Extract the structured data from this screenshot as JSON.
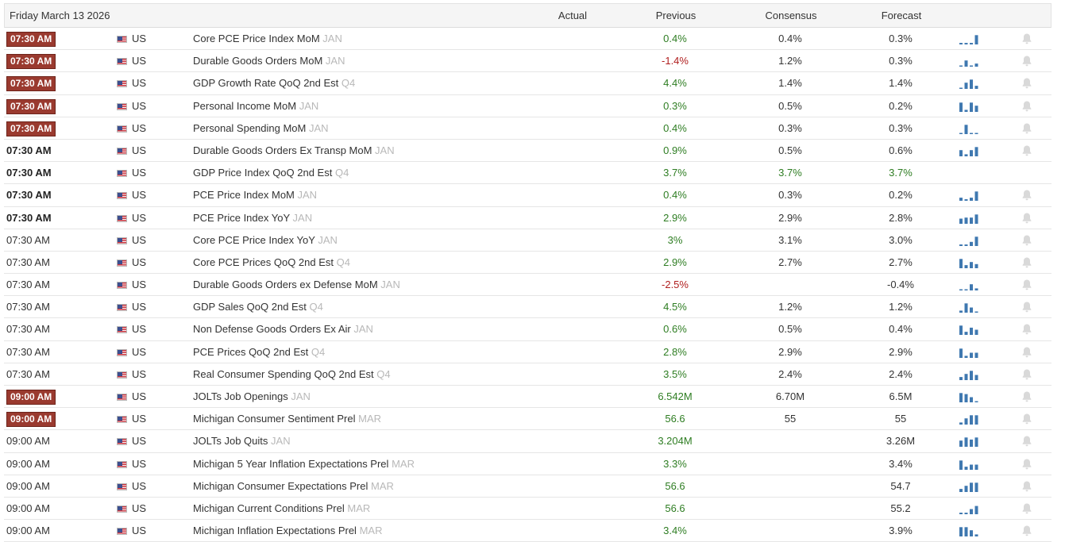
{
  "header": {
    "date": "Friday March 13 2026",
    "actual": "Actual",
    "previous": "Previous",
    "consensus": "Consensus",
    "forecast": "Forecast"
  },
  "colors": {
    "badge": "#9a3a2f",
    "positive": "#2e7d22",
    "negative": "#b01e1e",
    "spark": "#3f78b0",
    "spark_alt": "#f0c080"
  },
  "rows": [
    {
      "time": "07:30 AM",
      "time_style": "badge",
      "country": "US",
      "event": "Core PCE Price Index MoM",
      "ref": "JAN",
      "actual": "",
      "previous": "0.4%",
      "prev_color": "green",
      "consensus": "0.4%",
      "cons_color": "dark",
      "forecast": "0.3%",
      "fore_color": "dark",
      "spark": [
        0.15,
        0.15,
        0.15,
        0.9
      ],
      "bell": true
    },
    {
      "time": "07:30 AM",
      "time_style": "badge",
      "country": "US",
      "event": "Durable Goods Orders MoM",
      "ref": "JAN",
      "actual": "",
      "previous": "-1.4%",
      "prev_color": "red",
      "consensus": "1.2%",
      "cons_color": "dark",
      "forecast": "0.3%",
      "fore_color": "dark",
      "spark": [
        0.1,
        0.6,
        0.1,
        0.3
      ],
      "bell": true
    },
    {
      "time": "07:30 AM",
      "time_style": "badge",
      "country": "US",
      "event": "GDP Growth Rate QoQ 2nd Est",
      "ref": "Q4",
      "actual": "",
      "previous": "4.4%",
      "prev_color": "green",
      "consensus": "1.4%",
      "cons_color": "dark",
      "forecast": "1.4%",
      "fore_color": "dark",
      "spark": [
        0,
        0.6,
        0.9,
        0.3
      ],
      "bell": true
    },
    {
      "time": "07:30 AM",
      "time_style": "badge",
      "country": "US",
      "event": "Personal Income MoM",
      "ref": "JAN",
      "actual": "",
      "previous": "0.3%",
      "prev_color": "green",
      "consensus": "0.5%",
      "cons_color": "dark",
      "forecast": "0.2%",
      "fore_color": "dark",
      "spark": [
        0.9,
        0.2,
        0.9,
        0.6
      ],
      "bell": true
    },
    {
      "time": "07:30 AM",
      "time_style": "badge",
      "country": "US",
      "event": "Personal Spending MoM",
      "ref": "JAN",
      "actual": "",
      "previous": "0.4%",
      "prev_color": "green",
      "consensus": "0.3%",
      "cons_color": "dark",
      "forecast": "0.3%",
      "fore_color": "dark",
      "spark": [
        0.1,
        0.9,
        0.1,
        0.1
      ],
      "bell": true
    },
    {
      "time": "07:30 AM",
      "time_style": "bold",
      "country": "US",
      "event": "Durable Goods Orders Ex Transp MoM",
      "ref": "JAN",
      "actual": "",
      "previous": "0.9%",
      "prev_color": "green",
      "consensus": "0.5%",
      "cons_color": "dark",
      "forecast": "0.6%",
      "fore_color": "dark",
      "spark": [
        0.6,
        0.2,
        0.6,
        0.9
      ],
      "bell": true
    },
    {
      "time": "07:30 AM",
      "time_style": "bold",
      "country": "US",
      "event": "GDP Price Index QoQ 2nd Est",
      "ref": "Q4",
      "actual": "",
      "previous": "3.7%",
      "prev_color": "green",
      "consensus": "3.7%",
      "cons_color": "green",
      "forecast": "3.7%",
      "fore_color": "green",
      "spark": [],
      "bell": false
    },
    {
      "time": "07:30 AM",
      "time_style": "bold",
      "country": "US",
      "event": "PCE Price Index MoM",
      "ref": "JAN",
      "actual": "",
      "previous": "0.4%",
      "prev_color": "green",
      "consensus": "0.3%",
      "cons_color": "dark",
      "forecast": "0.2%",
      "fore_color": "dark",
      "spark": [
        0.3,
        0.15,
        0.3,
        0.9
      ],
      "bell": true
    },
    {
      "time": "07:30 AM",
      "time_style": "bold",
      "country": "US",
      "event": "PCE Price Index YoY",
      "ref": "JAN",
      "actual": "",
      "previous": "2.9%",
      "prev_color": "green",
      "consensus": "2.9%",
      "cons_color": "dark",
      "forecast": "2.8%",
      "fore_color": "dark",
      "spark": [
        0.5,
        0.6,
        0.6,
        0.9
      ],
      "bell": true
    },
    {
      "time": "07:30 AM",
      "time_style": "normal",
      "country": "US",
      "event": "Core PCE Price Index YoY",
      "ref": "JAN",
      "actual": "",
      "previous": "3%",
      "prev_color": "green",
      "consensus": "3.1%",
      "cons_color": "dark",
      "forecast": "3.0%",
      "fore_color": "dark",
      "spark": [
        0.15,
        0.15,
        0.4,
        0.9
      ],
      "bell": true
    },
    {
      "time": "07:30 AM",
      "time_style": "normal",
      "country": "US",
      "event": "Core PCE Prices QoQ 2nd Est",
      "ref": "Q4",
      "actual": "",
      "previous": "2.9%",
      "prev_color": "green",
      "consensus": "2.7%",
      "cons_color": "dark",
      "forecast": "2.7%",
      "fore_color": "dark",
      "spark": [
        0.9,
        0.3,
        0.6,
        0.4
      ],
      "bell": true
    },
    {
      "time": "07:30 AM",
      "time_style": "normal",
      "country": "US",
      "event": "Durable Goods Orders ex Defense MoM",
      "ref": "JAN",
      "actual": "",
      "previous": "-2.5%",
      "prev_color": "red",
      "consensus": "",
      "cons_color": "dark",
      "forecast": "-0.4%",
      "fore_color": "dark",
      "spark": [
        0.1,
        0.1,
        0.6,
        0.2
      ],
      "bell": true
    },
    {
      "time": "07:30 AM",
      "time_style": "normal",
      "country": "US",
      "event": "GDP Sales QoQ 2nd Est",
      "ref": "Q4",
      "actual": "",
      "previous": "4.5%",
      "prev_color": "green",
      "consensus": "1.2%",
      "cons_color": "dark",
      "forecast": "1.2%",
      "fore_color": "dark",
      "spark": [
        0.2,
        0.9,
        0.5,
        0.1
      ],
      "bell": true
    },
    {
      "time": "07:30 AM",
      "time_style": "normal",
      "country": "US",
      "event": "Non Defense Goods Orders Ex Air",
      "ref": "JAN",
      "actual": "",
      "previous": "0.6%",
      "prev_color": "green",
      "consensus": "0.5%",
      "cons_color": "dark",
      "forecast": "0.4%",
      "fore_color": "dark",
      "spark": [
        0.9,
        0.3,
        0.7,
        0.5
      ],
      "bell": true
    },
    {
      "time": "07:30 AM",
      "time_style": "normal",
      "country": "US",
      "event": "PCE Prices QoQ 2nd Est",
      "ref": "Q4",
      "actual": "",
      "previous": "2.8%",
      "prev_color": "green",
      "consensus": "2.9%",
      "cons_color": "dark",
      "forecast": "2.9%",
      "fore_color": "dark",
      "spark": [
        0.9,
        0.2,
        0.5,
        0.5
      ],
      "bell": true
    },
    {
      "time": "07:30 AM",
      "time_style": "normal",
      "country": "US",
      "event": "Real Consumer Spending QoQ 2nd Est",
      "ref": "Q4",
      "actual": "",
      "previous": "3.5%",
      "prev_color": "green",
      "consensus": "2.4%",
      "cons_color": "dark",
      "forecast": "2.4%",
      "fore_color": "dark",
      "spark": [
        0.3,
        0.6,
        0.9,
        0.5
      ],
      "bell": true
    },
    {
      "time": "09:00 AM",
      "time_style": "badge",
      "country": "US",
      "event": "JOLTs Job Openings",
      "ref": "JAN",
      "actual": "",
      "previous": "6.542M",
      "prev_color": "green",
      "consensus": "6.70M",
      "cons_color": "dark",
      "forecast": "6.5M",
      "fore_color": "dark",
      "spark": [
        0.9,
        0.8,
        0.5,
        0.1
      ],
      "bell": true
    },
    {
      "time": "09:00 AM",
      "time_style": "badge",
      "country": "US",
      "event": "Michigan Consumer Sentiment Prel",
      "ref": "MAR",
      "actual": "",
      "previous": "56.6",
      "prev_color": "green",
      "consensus": "55",
      "cons_color": "dark",
      "forecast": "55",
      "fore_color": "dark",
      "spark": [
        0.2,
        0.6,
        0.9,
        0.9
      ],
      "bell": true
    },
    {
      "time": "09:00 AM",
      "time_style": "normal",
      "country": "US",
      "event": "JOLTs Job Quits",
      "ref": "JAN",
      "actual": "",
      "previous": "3.204M",
      "prev_color": "green",
      "consensus": "",
      "cons_color": "dark",
      "forecast": "3.26M",
      "fore_color": "dark",
      "spark": [
        0.6,
        0.9,
        0.7,
        0.9
      ],
      "bell": true
    },
    {
      "time": "09:00 AM",
      "time_style": "normal",
      "country": "US",
      "event": "Michigan 5 Year Inflation Expectations Prel",
      "ref": "MAR",
      "actual": "",
      "previous": "3.3%",
      "prev_color": "green",
      "consensus": "",
      "cons_color": "dark",
      "forecast": "3.4%",
      "fore_color": "dark",
      "spark": [
        0.9,
        0.3,
        0.5,
        0.5
      ],
      "bell": true
    },
    {
      "time": "09:00 AM",
      "time_style": "normal",
      "country": "US",
      "event": "Michigan Consumer Expectations Prel",
      "ref": "MAR",
      "actual": "",
      "previous": "56.6",
      "prev_color": "green",
      "consensus": "",
      "cons_color": "dark",
      "forecast": "54.7",
      "fore_color": "dark",
      "spark": [
        0.3,
        0.6,
        0.9,
        0.9
      ],
      "bell": true
    },
    {
      "time": "09:00 AM",
      "time_style": "normal",
      "country": "US",
      "event": "Michigan Current Conditions Prel",
      "ref": "MAR",
      "actual": "",
      "previous": "56.6",
      "prev_color": "green",
      "consensus": "",
      "cons_color": "dark",
      "forecast": "55.2",
      "fore_color": "dark",
      "spark": [
        0.15,
        0.15,
        0.5,
        0.8
      ],
      "bell": true
    },
    {
      "time": "09:00 AM",
      "time_style": "normal",
      "country": "US",
      "event": "Michigan Inflation Expectations Prel",
      "ref": "MAR",
      "actual": "",
      "previous": "3.4%",
      "prev_color": "green",
      "consensus": "",
      "cons_color": "dark",
      "forecast": "3.9%",
      "fore_color": "dark",
      "spark": [
        0.9,
        0.9,
        0.6,
        0.2
      ],
      "bell": true
    }
  ]
}
